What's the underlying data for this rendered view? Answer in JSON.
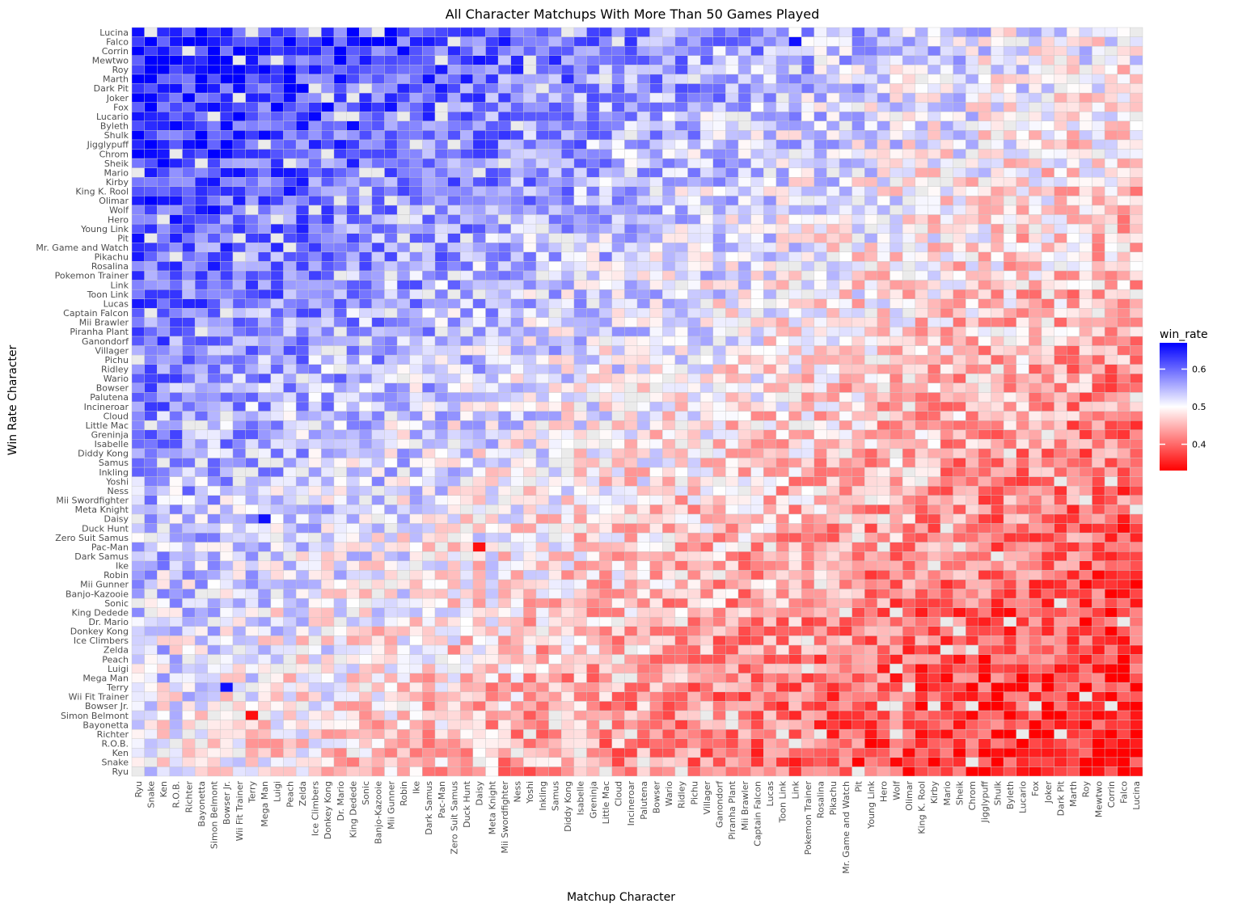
{
  "chart_data": {
    "type": "heatmap",
    "title": "All Character Matchups With More Than 50 Games Played",
    "xlabel": "Matchup Character",
    "ylabel": "Win Rate Character",
    "legend": {
      "title": "win_rate",
      "position": "right",
      "ticks": [
        0.4,
        0.5,
        0.6
      ],
      "range": [
        0.33,
        0.67
      ],
      "colors": {
        "low": "#ff0000",
        "mid": "#ffffff",
        "high": "#0000ff",
        "missing": "#ebebeb"
      }
    },
    "characters": [
      "Ryu",
      "Snake",
      "Ken",
      "R.O.B.",
      "Richter",
      "Bayonetta",
      "Simon Belmont",
      "Bowser Jr.",
      "Wii Fit Trainer",
      "Terry",
      "Mega Man",
      "Luigi",
      "Peach",
      "Zelda",
      "Ice Climbers",
      "Donkey Kong",
      "Dr. Mario",
      "King Dedede",
      "Sonic",
      "Banjo-Kazooie",
      "Mii Gunner",
      "Robin",
      "Ike",
      "Dark Samus",
      "Pac-Man",
      "Zero Suit Samus",
      "Duck Hunt",
      "Daisy",
      "Meta Knight",
      "Mii Swordfighter",
      "Ness",
      "Yoshi",
      "Inkling",
      "Samus",
      "Diddy Kong",
      "Isabelle",
      "Greninja",
      "Little Mac",
      "Cloud",
      "Incineroar",
      "Palutena",
      "Bowser",
      "Wario",
      "Ridley",
      "Pichu",
      "Villager",
      "Ganondorf",
      "Piranha Plant",
      "Mii Brawler",
      "Captain Falcon",
      "Lucas",
      "Toon Link",
      "Link",
      "Pokemon Trainer",
      "Rosalina",
      "Pikachu",
      "Mr. Game and Watch",
      "Pit",
      "Young Link",
      "Hero",
      "Wolf",
      "Olimar",
      "King K. Rool",
      "Kirby",
      "Mario",
      "Sheik",
      "Chrom",
      "Jigglypuff",
      "Shulk",
      "Byleth",
      "Lucario",
      "Fox",
      "Joker",
      "Dark Pit",
      "Marth",
      "Roy",
      "Mewtwo",
      "Corrin",
      "Falco",
      "Lucina"
    ],
    "notable_cells": [
      {
        "row": "Lucina",
        "col": "Ryu",
        "value": 0.66
      },
      {
        "row": "Falco",
        "col": "Link",
        "value": 0.66
      },
      {
        "row": "Pac-Man",
        "col": "Daisy",
        "value": 0.34
      },
      {
        "row": "Simon Belmont",
        "col": "Terry",
        "value": 0.34
      },
      {
        "row": "Ryu",
        "col": "Lucina",
        "value": 0.34
      },
      {
        "row": "Ice Climbers",
        "col": "Falco",
        "value": 0.34
      },
      {
        "row": "Mii Gunner",
        "col": "Fox",
        "value": 0.35
      },
      {
        "row": "Daisy",
        "col": "Mega Man",
        "value": 0.66
      },
      {
        "row": "Fox",
        "col": "Mii Gunner",
        "value": 0.66
      },
      {
        "row": "Terry",
        "col": "Bowser Jr.",
        "value": 0.66
      }
    ]
  }
}
